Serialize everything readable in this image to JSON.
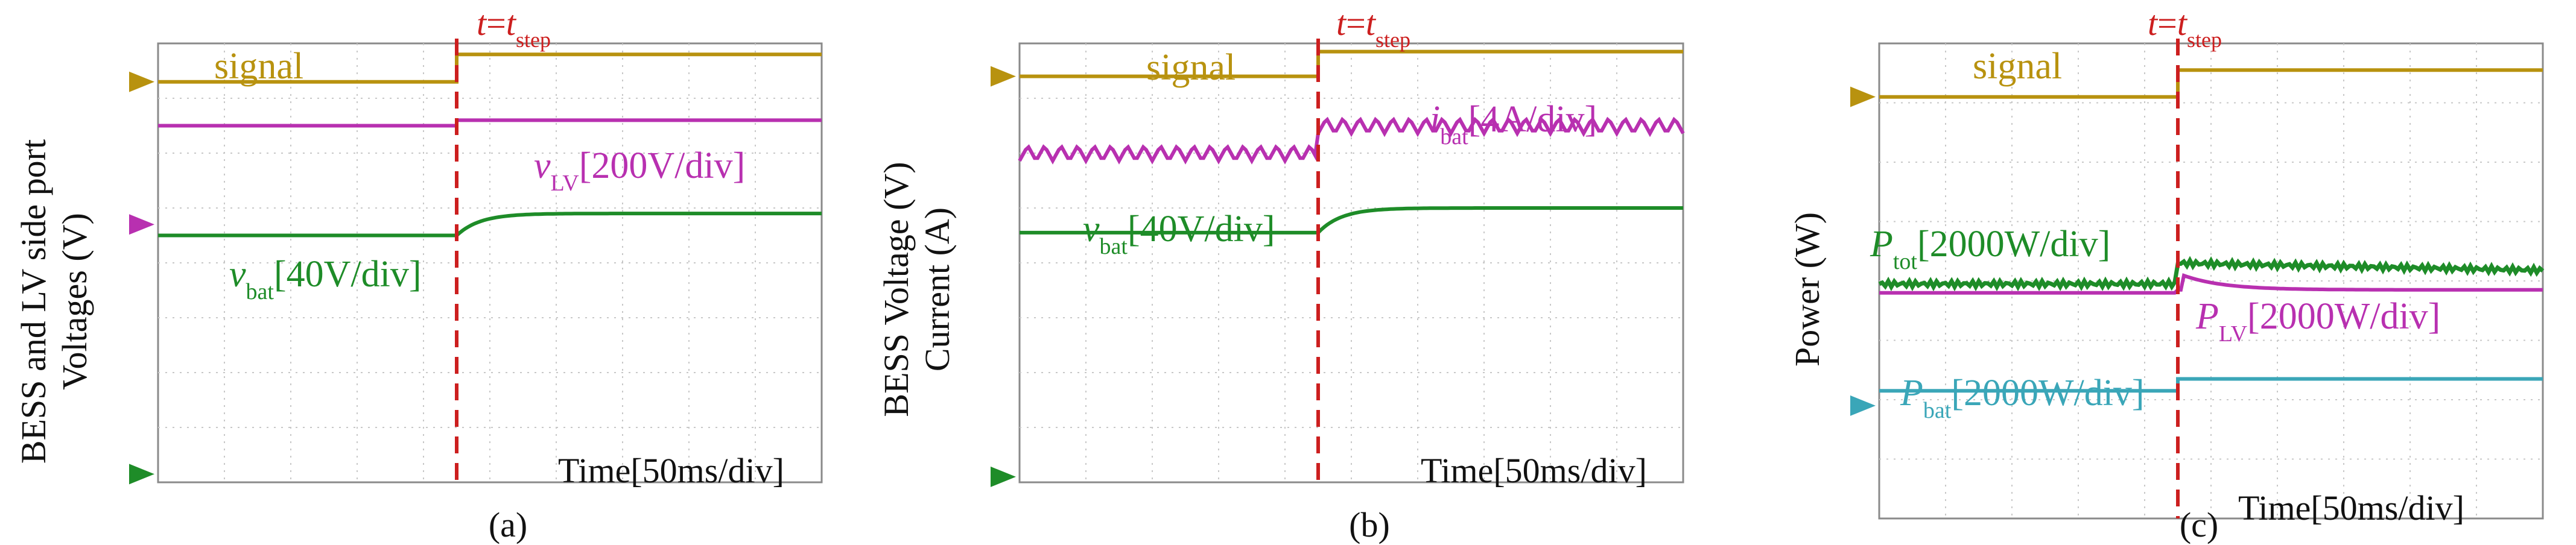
{
  "colors": {
    "signal": "#b8920f",
    "green": "#1e8c28",
    "magenta": "#b830b0",
    "cyan": "#3aa6b8",
    "step": "#cc1f1f",
    "grid": "#c8c8c8",
    "frame": "#8a8a8a"
  },
  "chart_data": [
    {
      "type": "line",
      "panel": "(a)",
      "ylabel": "BESS and LV side port Voltages (V)",
      "xlabel": "Time[50ms/div]",
      "marker_label": "t=t_step",
      "grid": true,
      "step_time_div": 4.5,
      "x_range_div": [
        0,
        10
      ],
      "y_range_div": [
        0,
        8
      ],
      "series": [
        {
          "name": "signal",
          "color": "#b8920f",
          "style": "step",
          "before": 7.3,
          "after": 7.8
        },
        {
          "name": "vLV[200V/div]",
          "color": "#b830b0",
          "style": "step",
          "before": 6.5,
          "after": 6.6
        },
        {
          "name": "vbat[40V/div]",
          "color": "#1e8c28",
          "style": "rise",
          "before": 4.5,
          "after": 4.9
        }
      ],
      "ground_markers": [
        {
          "color": "#b8920f",
          "level_div": 7.3
        },
        {
          "color": "#b830b0",
          "level_div": 4.7
        },
        {
          "color": "#1e8c28",
          "level_div": 0.15
        }
      ]
    },
    {
      "type": "line",
      "panel": "(b)",
      "ylabel": "BESS Voltage (V) Current (A)",
      "xlabel": "Time[50ms/div]",
      "marker_label": "t=t_step",
      "grid": true,
      "step_time_div": 4.5,
      "x_range_div": [
        0,
        10
      ],
      "y_range_div": [
        0,
        8
      ],
      "series": [
        {
          "name": "signal",
          "color": "#b8920f",
          "style": "step",
          "before": 7.4,
          "after": 7.85
        },
        {
          "name": "ibat[4A/div]",
          "color": "#b830b0",
          "style": "ripple",
          "before": 6.0,
          "after": 6.5
        },
        {
          "name": "vbat[40V/div]",
          "color": "#1e8c28",
          "style": "rise",
          "before": 4.55,
          "after": 5.0
        }
      ],
      "ground_markers": [
        {
          "color": "#b8920f",
          "level_div": 7.4
        },
        {
          "color": "#1e8c28",
          "level_div": 0.1
        }
      ]
    },
    {
      "type": "line",
      "panel": "(c)",
      "ylabel": "Power (W)",
      "xlabel": "Time[50ms/div]",
      "marker_label": "t=t_step",
      "grid": true,
      "step_time_div": 4.5,
      "x_range_div": [
        0,
        10
      ],
      "y_range_div": [
        0,
        8
      ],
      "series": [
        {
          "name": "signal",
          "color": "#b8920f",
          "style": "step",
          "before": 7.1,
          "after": 7.55
        },
        {
          "name": "Ptot[2000W/div]",
          "color": "#1e8c28",
          "style": "noisy",
          "before": 3.95,
          "after": 4.3
        },
        {
          "name": "PLV[2000W/div]",
          "color": "#b830b0",
          "style": "dip",
          "before": 3.8,
          "after": 3.8
        },
        {
          "name": "Pbat[2000W/div]",
          "color": "#3aa6b8",
          "style": "step",
          "before": 2.15,
          "after": 2.35
        }
      ],
      "ground_markers": [
        {
          "color": "#b8920f",
          "level_div": 7.1
        },
        {
          "color": "#3aa6b8",
          "level_div": 1.9
        }
      ]
    }
  ],
  "panels": [
    {
      "caption": "(a)",
      "ylabel_line1": "BESS and LV side port",
      "ylabel_line2": "Voltages (V)",
      "xlabel": "Time[50ms/div]",
      "step_t": "t",
      "step_eq": "=",
      "step_t2": "t",
      "step_sub": "step",
      "labels": [
        {
          "key": "signal",
          "main": "signal",
          "sub": "",
          "rest": ""
        },
        {
          "key": "lv",
          "main": "v",
          "sub": "LV",
          "rest": "[200V/div]"
        },
        {
          "key": "bat",
          "main": "v",
          "sub": "bat",
          "rest": "[40V/div]"
        }
      ]
    },
    {
      "caption": "(b)",
      "ylabel_line1": "BESS Voltage (V)",
      "ylabel_line2": "Current (A)",
      "xlabel": "Time[50ms/div]",
      "step_t": "t",
      "step_eq": "=",
      "step_t2": "t",
      "step_sub": "step",
      "labels": [
        {
          "key": "signal",
          "main": "signal",
          "sub": "",
          "rest": ""
        },
        {
          "key": "ibat",
          "main": "i",
          "sub": "bat",
          "rest": "[4A/div]"
        },
        {
          "key": "vbat",
          "main": "v",
          "sub": "bat",
          "rest": "[40V/div]"
        }
      ]
    },
    {
      "caption": "(c)",
      "ylabel_line1": "Power (W)",
      "ylabel_line2": "",
      "xlabel": "Time[50ms/div]",
      "step_t": "t",
      "step_eq": "=",
      "step_t2": "t",
      "step_sub": "step",
      "labels": [
        {
          "key": "signal",
          "main": "signal",
          "sub": "",
          "rest": ""
        },
        {
          "key": "ptot",
          "main": "P",
          "sub": "tot",
          "rest": "[2000W/div]"
        },
        {
          "key": "plv",
          "main": "P",
          "sub": "LV",
          "rest": "[2000W/div]"
        },
        {
          "key": "pbat",
          "main": "P",
          "sub": "bat",
          "rest": "[2000W/div]"
        }
      ]
    }
  ]
}
